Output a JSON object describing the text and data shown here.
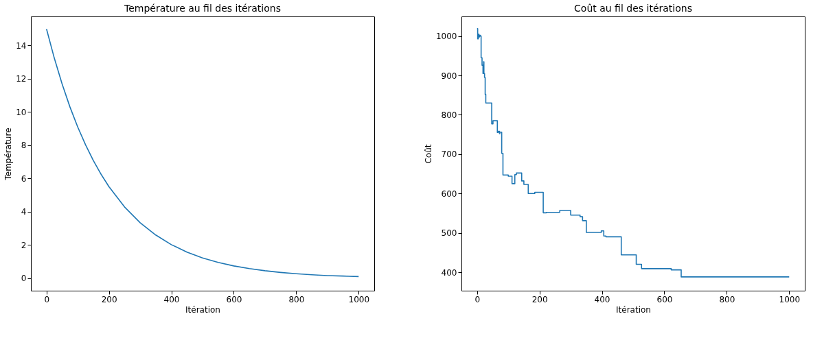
{
  "chart_data": [
    {
      "type": "line",
      "title": "Température au fil des itérations",
      "xlabel": "Itération",
      "ylabel": "Température",
      "color": "#1f77b4",
      "grid": false,
      "x": [
        0,
        25,
        50,
        75,
        100,
        125,
        150,
        175,
        200,
        250,
        300,
        350,
        400,
        450,
        500,
        550,
        600,
        650,
        700,
        750,
        800,
        850,
        900,
        950,
        1000
      ],
      "values": [
        15.0,
        13.24,
        11.69,
        10.31,
        9.1,
        8.03,
        7.08,
        6.25,
        5.51,
        4.29,
        3.34,
        2.6,
        2.02,
        1.57,
        1.22,
        0.95,
        0.74,
        0.58,
        0.45,
        0.35,
        0.27,
        0.21,
        0.16,
        0.13,
        0.1
      ],
      "xlim": [
        -50,
        1050
      ],
      "ylim": [
        -0.75,
        15.75
      ],
      "xticks": [
        0,
        200,
        400,
        600,
        800,
        1000
      ],
      "yticks": [
        0,
        2,
        4,
        6,
        8,
        10,
        12,
        14
      ]
    },
    {
      "type": "step",
      "title": "Coût au fil des itérations",
      "xlabel": "Itération",
      "ylabel": "Coût",
      "color": "#1f77b4",
      "grid": false,
      "x": [
        0,
        2,
        4,
        6,
        8,
        11,
        13,
        16,
        19,
        21,
        22,
        24,
        26,
        28,
        47,
        51,
        65,
        68,
        72,
        73,
        79,
        83,
        100,
        112,
        121,
        126,
        143,
        150,
        164,
        185,
        212,
        222,
        265,
        300,
        330,
        338,
        350,
        398,
        406,
        413,
        462,
        510,
        527,
        622,
        654,
        1000
      ],
      "values": [
        1019,
        993,
        1005,
        998,
        1002,
        1000,
        945,
        926,
        905,
        935,
        905,
        895,
        852,
        830,
        777,
        785,
        755,
        758,
        752,
        756,
        702,
        647,
        644,
        625,
        648,
        652,
        632,
        623,
        600,
        603,
        551,
        552,
        557,
        545,
        541,
        531,
        501,
        505,
        492,
        490,
        444,
        420,
        409,
        406,
        388,
        388
      ],
      "xlim": [
        -50,
        1050
      ],
      "ylim": [
        353,
        1050
      ],
      "xticks": [
        0,
        200,
        400,
        600,
        800,
        1000
      ],
      "yticks": [
        400,
        500,
        600,
        700,
        800,
        900,
        1000
      ]
    }
  ]
}
